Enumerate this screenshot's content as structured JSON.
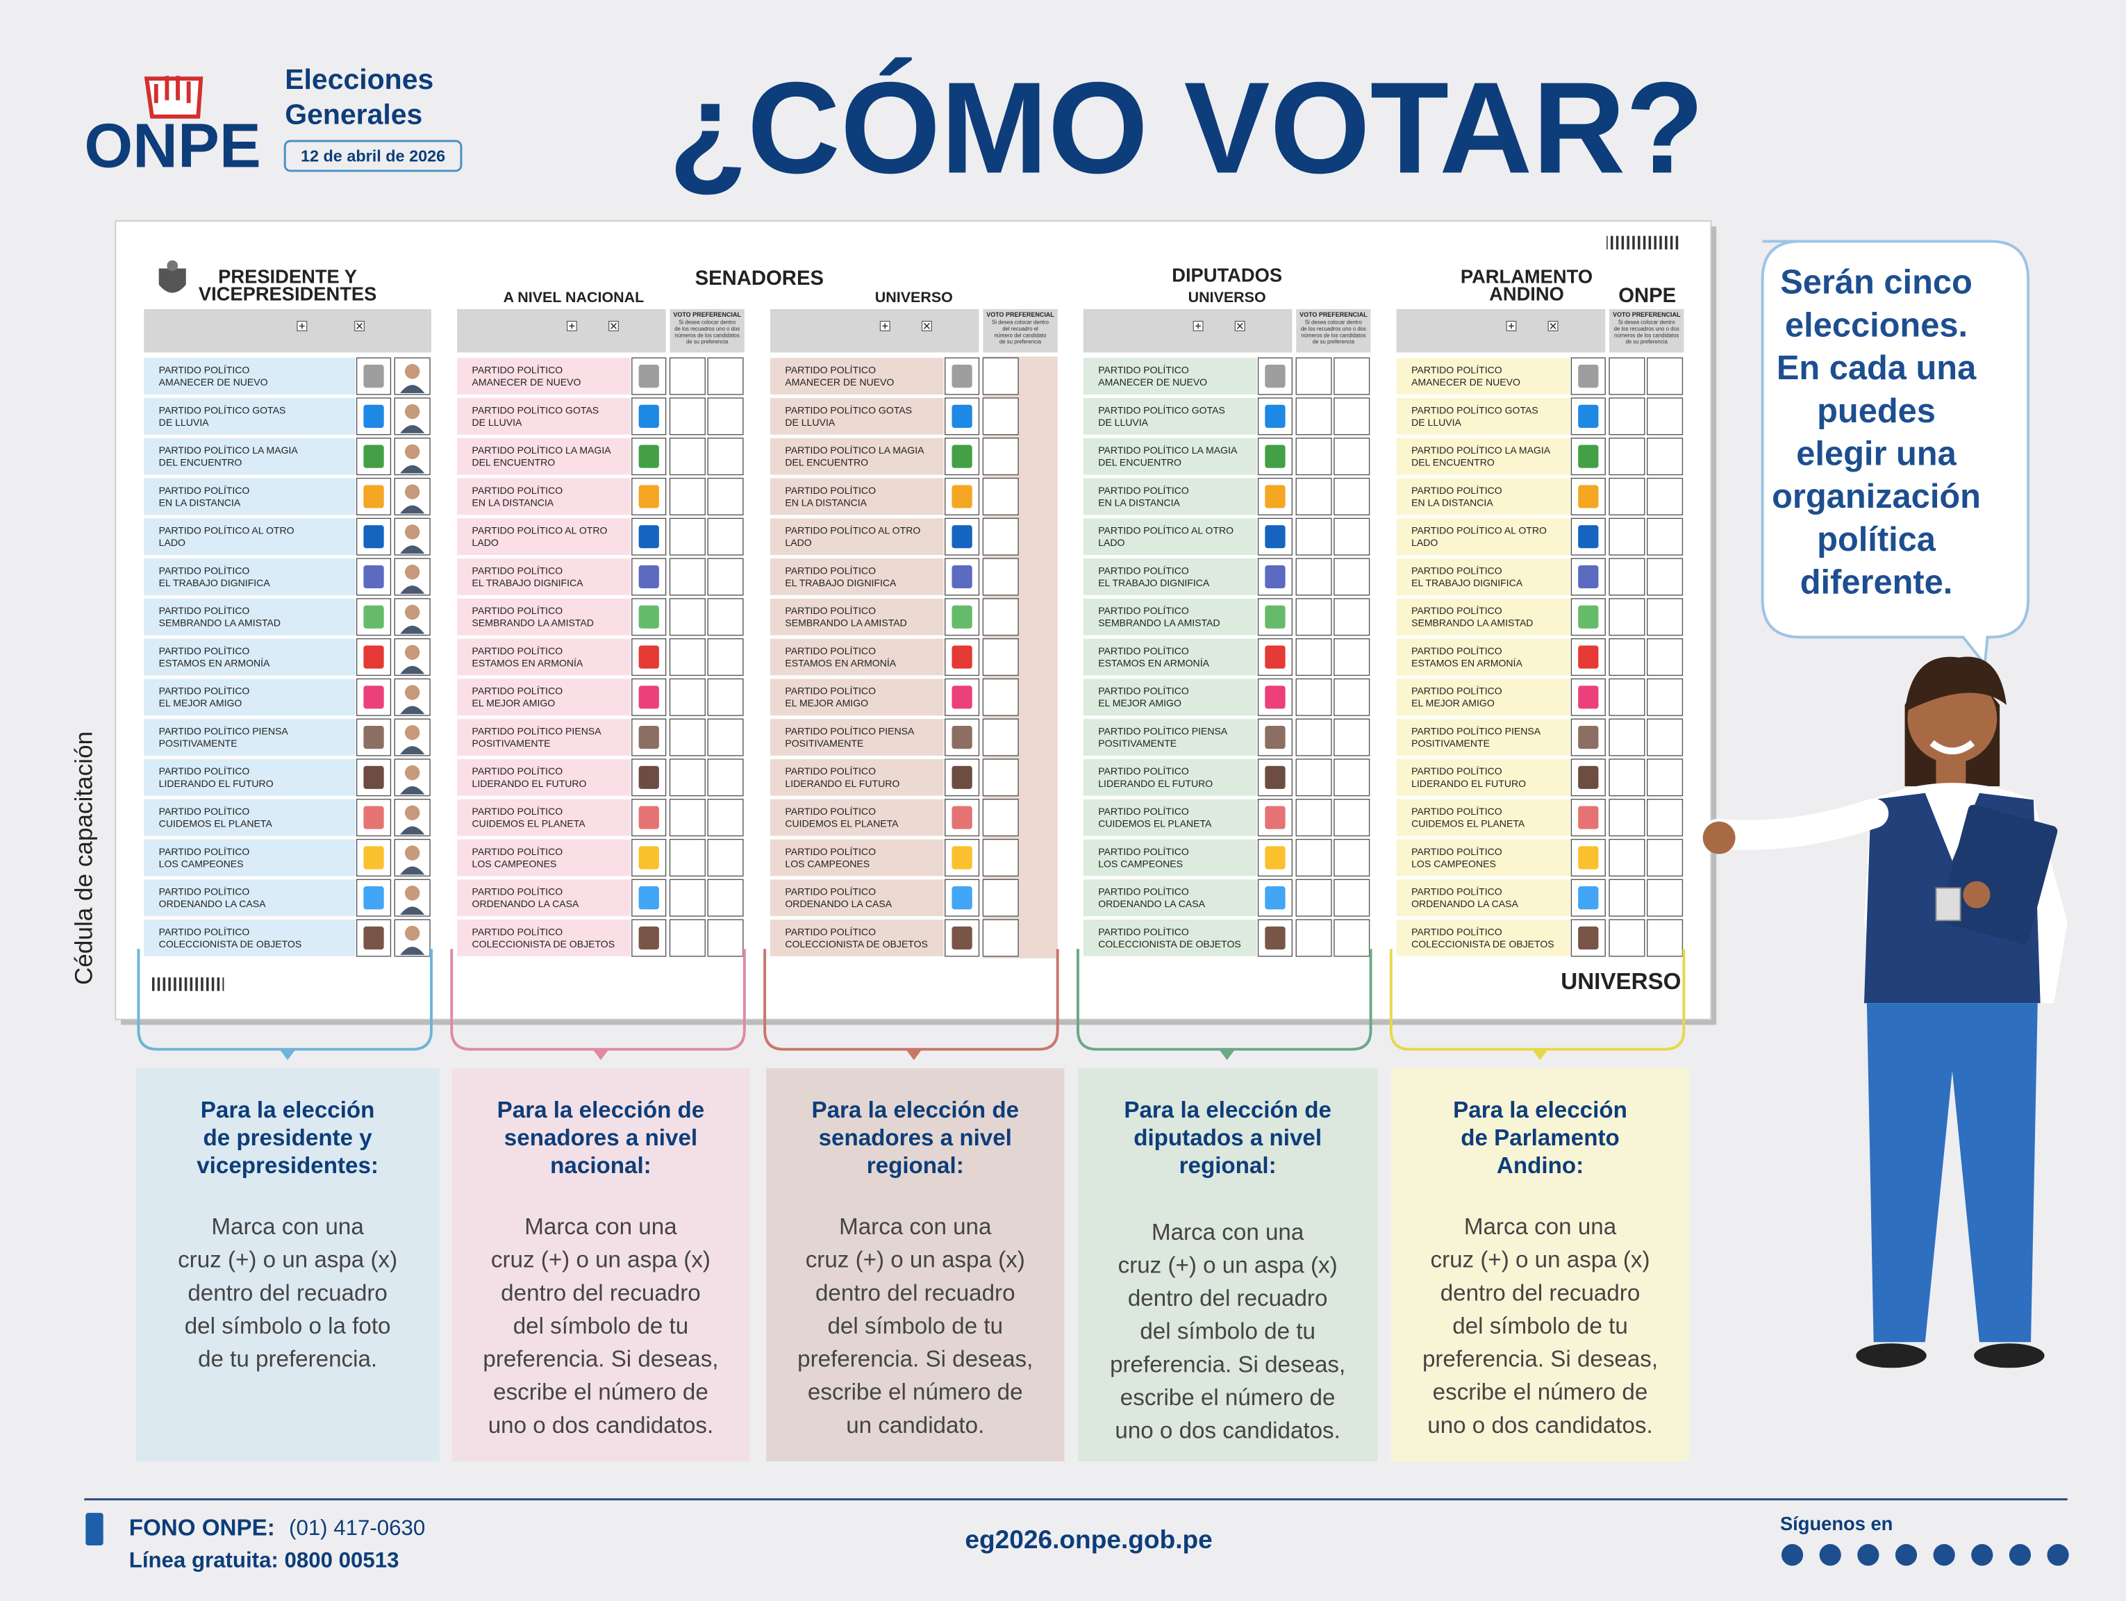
{
  "header": {
    "logo": "ONPE",
    "event_lines": [
      "Elecciones",
      "Generales"
    ],
    "date": "12 de abril de 2026",
    "title": "¿CÓMO VOTAR?"
  },
  "side_label": "Cédula de capacitación",
  "ballot": {
    "group_title": "SENADORES",
    "logo": "ONPE",
    "footer": "UNIVERSO",
    "preference_title": "VOTO PREFERENCIAL",
    "parties": [
      [
        "PARTIDO POLÍTICO",
        "AMANECER DE NUEVO"
      ],
      [
        "PARTIDO POLÍTICO GOTAS",
        "DE LLUVIA"
      ],
      [
        "PARTIDO POLÍTICO LA MAGIA",
        "DEL ENCUENTRO"
      ],
      [
        "PARTIDO POLÍTICO",
        "EN LA DISTANCIA"
      ],
      [
        "PARTIDO POLÍTICO AL OTRO",
        "LADO"
      ],
      [
        "PARTIDO POLÍTICO",
        "EL TRABAJO DIGNIFICA"
      ],
      [
        "PARTIDO POLÍTICO",
        "SEMBRANDO LA AMISTAD"
      ],
      [
        "PARTIDO POLÍTICO",
        "ESTAMOS EN ARMONÍA"
      ],
      [
        "PARTIDO POLÍTICO",
        "EL MEJOR AMIGO"
      ],
      [
        "PARTIDO POLÍTICO PIENSA",
        "POSITIVAMENTE"
      ],
      [
        "PARTIDO POLÍTICO",
        "LIDERANDO EL FUTURO"
      ],
      [
        "PARTIDO POLÍTICO",
        "CUIDEMOS EL PLANETA"
      ],
      [
        "PARTIDO POLÍTICO",
        "LOS CAMPEONES"
      ],
      [
        "PARTIDO POLÍTICO",
        "ORDENANDO LA CASA"
      ],
      [
        "PARTIDO POLÍTICO",
        "COLECCIONISTA DE OBJETOS"
      ]
    ],
    "columns": [
      {
        "title_lines": [
          "PRESIDENTE Y",
          "VICEPRESIDENTES"
        ],
        "color": "#6fb3d8",
        "light": "#d9ecf7",
        "panel": "#dde9f0"
      },
      {
        "subtitle": "A NIVEL NACIONAL",
        "pref_note": [
          "Si desea colocar dentro",
          "de los recuadros uno o dos",
          "números de los candidatos",
          "de su preferencia"
        ],
        "color": "#e08aa0",
        "light": "#fbdfe6",
        "panel": "#f3e0e6"
      },
      {
        "subtitle": "UNIVERSO",
        "pref_note": [
          "Si desea colocar dentro",
          "del recuadro el",
          "número del candidato",
          "de su preferencia"
        ],
        "color": "#c9766a",
        "light": "#ecd9d2",
        "panel": "#e3d6d2"
      },
      {
        "title_lines": [
          "DIPUTADOS"
        ],
        "subtitle": "UNIVERSO",
        "pref_note": [
          "Si desea colocar dentro",
          "de los recuadros uno o dos",
          "números de los candidatos",
          "de su preferencia"
        ],
        "color": "#6aa984",
        "light": "#dcebdd",
        "panel": "#dce7de"
      },
      {
        "title_lines": [
          "PARLAMENTO",
          "ANDINO"
        ],
        "pref_note": [
          "Si desea colocar dentro",
          "de los recuadros uno o dos",
          "números de los candidatos",
          "de su preferencia"
        ],
        "color": "#e6d84a",
        "light": "#fbf6cf",
        "panel": "#f8f5d6"
      }
    ]
  },
  "instructions": [
    {
      "heading_lines": [
        "Para la elección",
        "de presidente y",
        "vicepresidentes:"
      ],
      "body_lines": [
        "Marca con una",
        "cruz (+) o un aspa (x)",
        "dentro del recuadro",
        "del símbolo o la foto",
        "de tu preferencia."
      ]
    },
    {
      "heading_lines": [
        "Para la elección de",
        "senadores a nivel",
        "nacional:"
      ],
      "body_lines": [
        "Marca con una",
        "cruz (+) o un aspa (x)",
        "dentro del recuadro",
        "del símbolo de tu",
        "preferencia. Si deseas,",
        "escribe el número de",
        "uno o dos candidatos."
      ]
    },
    {
      "heading_lines": [
        "Para la elección de",
        "senadores a nivel",
        "regional:"
      ],
      "body_lines": [
        "Marca con una",
        "cruz (+) o un aspa (x)",
        "dentro del recuadro",
        "del símbolo de tu",
        "preferencia. Si deseas,",
        "escribe el número de",
        "un candidato."
      ]
    },
    {
      "heading_lines": [
        "Para la elección de",
        "diputados a nivel",
        "regional:"
      ],
      "body_lines": [
        "Marca con una",
        "cruz (+) o un aspa (x)",
        "dentro del recuadro",
        "del símbolo de tu",
        "preferencia. Si deseas,",
        "escribe el número de",
        "uno o dos candidatos."
      ]
    },
    {
      "heading_lines": [
        "Para la elección",
        "de Parlamento",
        "Andino:"
      ],
      "body_lines": [
        "Marca con una",
        "cruz (+) o un aspa (x)",
        "dentro del recuadro",
        "del símbolo de tu",
        "preferencia. Si deseas,",
        "escribe el número de",
        "uno o dos candidatos."
      ]
    }
  ],
  "bubble_lines": [
    "Serán cinco",
    "elecciones.",
    "En cada una",
    "puedes",
    "elegir una",
    "organización",
    "política",
    "diferente."
  ],
  "footer": {
    "phone_label": "FONO ONPE:",
    "phone": "(01) 417-0630",
    "free_line": "Línea gratuita: 0800 00513",
    "website": "eg2026.onpe.gob.pe",
    "follow": "Síguenos en"
  }
}
